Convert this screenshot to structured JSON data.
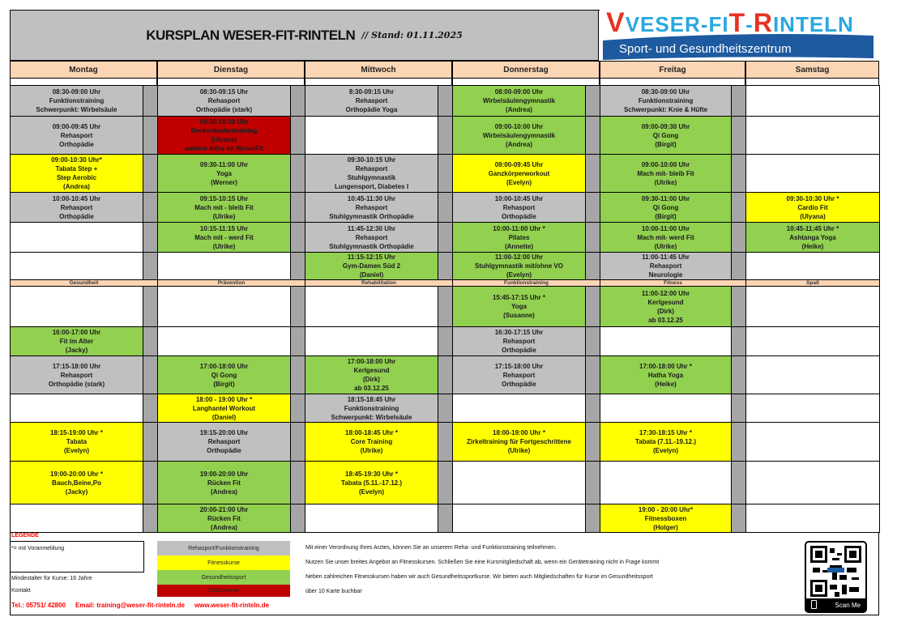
{
  "header": {
    "title": "KURSPLAN WESER-FIT-RINTELN",
    "stand": "// Stand: 01.11.2025",
    "logo_text": "WESER-FIT-RINTELN",
    "logo_subtitle": "Sport- und Gesundheitszentrum"
  },
  "colors": {
    "reha": "#c0c0c0",
    "fitness": "#ffff00",
    "gesund": "#92d050",
    "zusatz": "#c00000",
    "header_bg": "#fcd5b4",
    "contact_red": "#ff0000"
  },
  "days": [
    "Montag",
    "Dienstag",
    "Mittwoch",
    "Donnerstag",
    "Freitag",
    "Samstag"
  ],
  "categories": [
    "Gesundheit",
    "Prävention",
    "Rehabilitation",
    "Funktionstraining",
    "Fitness",
    "Spaß"
  ],
  "morning_rows": [
    [
      {
        "type": "reha",
        "lines": [
          "08:30-09:00 Uhr",
          "Funktionstraining",
          "Schwerpunkt: Wirbelsäule"
        ]
      },
      {
        "type": "reha",
        "lines": [
          "08:30-09:15 Uhr",
          "Rehasport",
          "Orthopädie (stark)"
        ]
      },
      {
        "type": "reha",
        "lines": [
          "8:30-09:15 Uhr",
          "Rehasport",
          "Orthopädie Yoga"
        ]
      },
      {
        "type": "gesund",
        "lines": [
          "08:00-09:00 Uhr",
          "Wirbelsäulengymnastik",
          "(Andrea)"
        ]
      },
      {
        "type": "reha",
        "lines": [
          "08:30-09:00 Uhr",
          "Funktionstraining",
          "Schwerpunkt: Knie & Hüfte"
        ]
      },
      null
    ],
    [
      {
        "type": "reha",
        "lines": [
          "09:00-09:45 Uhr",
          "Rehasport",
          "Orthopädie"
        ]
      },
      {
        "type": "zusatz",
        "lines": [
          "09:30-10:30 Uhr",
          "Beckenbodentraining",
          "(Ulyana)",
          "weitere Infos im WeserFit"
        ]
      },
      null,
      {
        "type": "gesund",
        "lines": [
          "09:00-10:00 Uhr",
          "Wirbelsäulengymnastik",
          "(Andrea)"
        ]
      },
      {
        "type": "gesund",
        "lines": [
          "09:00-09:30 Uhr",
          "Qi Gong",
          "(Birgit)"
        ]
      },
      null
    ],
    [
      {
        "type": "fitness",
        "lines": [
          "09:00-10:30 Uhr*",
          "Tabata Step +",
          "Step Aerobic",
          "(Andrea)"
        ]
      },
      {
        "type": "gesund",
        "lines": [
          "09:30-11:00 Uhr",
          "Yoga",
          "(Werner)"
        ]
      },
      {
        "type": "reha",
        "lines": [
          "09:30-10:15 Uhr",
          "Rehasport",
          "Stuhlgymnastik",
          "Lungensport, Diabetes I"
        ]
      },
      {
        "type": "fitness",
        "lines": [
          "09:00-09:45 Uhr",
          "Ganzkörperworkout",
          "(Evelyn)"
        ]
      },
      {
        "type": "gesund",
        "lines": [
          "09:00-10:00 Uhr",
          "Mach mit- bleib Fit",
          "(Ulrike)"
        ]
      },
      null
    ],
    [
      {
        "type": "reha",
        "lines": [
          "10:00-10:45 Uhr",
          "Rehasport",
          "Orthopädie"
        ]
      },
      {
        "type": "gesund",
        "lines": [
          "09:15-10:15 Uhr",
          "Mach mit - bleib Fit",
          "(Ulrike)"
        ]
      },
      {
        "type": "reha",
        "lines": [
          "10:45-11:30 Uhr",
          "Rehasport",
          "Stuhlgymnastik Orthopädie"
        ]
      },
      {
        "type": "reha",
        "lines": [
          "10:00-10:45 Uhr",
          "Rehasport",
          "Orthopädie"
        ]
      },
      {
        "type": "gesund",
        "lines": [
          "09:30-11:00 Uhr",
          "Qi Gong",
          "(Birgit)"
        ]
      },
      {
        "type": "fitness",
        "lines": [
          "09:30-10:30 Uhr *",
          "Cardio Fit",
          "(Ulyana)"
        ]
      }
    ],
    [
      null,
      {
        "type": "gesund",
        "lines": [
          "10:15-11:15 Uhr",
          "Mach mit - werd Fit",
          "(Ulrike)"
        ]
      },
      {
        "type": "reha",
        "lines": [
          "11:45-12:30 Uhr",
          "Rehasport",
          "Stuhlgymnastik Orthopädie"
        ]
      },
      {
        "type": "gesund",
        "lines": [
          "10:00-11:00 Uhr *",
          "Pilates",
          "(Annette)"
        ]
      },
      {
        "type": "gesund",
        "lines": [
          "10:00-11:00 Uhr",
          "Mach mit- werd Fit",
          "(Ulrike)"
        ]
      },
      {
        "type": "gesund",
        "lines": [
          "10:45-11:45 Uhr *",
          "Ashtanga Yoga",
          "(Heike)"
        ]
      }
    ],
    [
      null,
      null,
      {
        "type": "gesund",
        "lines": [
          "11:15-12:15 Uhr",
          "Gym-Damen Süd 2",
          "(Daniel)"
        ]
      },
      {
        "type": "gesund",
        "lines": [
          "11:00-12:00 Uhr",
          "Stuhlgymnastik mit/ohne VO",
          "(Evelyn)"
        ]
      },
      {
        "type": "reha",
        "lines": [
          "11:00-11:45 Uhr",
          "Rehasport",
          "Neurologie"
        ]
      },
      null
    ]
  ],
  "afternoon_rows": [
    [
      null,
      null,
      null,
      {
        "type": "gesund",
        "lines": [
          "15:45-17:15 Uhr *",
          "Yoga",
          "(Susanne)"
        ]
      },
      {
        "type": "gesund",
        "lines": [
          "11:00-12:00 Uhr",
          "Kerlgesund",
          "(Dirk)",
          "ab 03.12.25"
        ]
      },
      null
    ],
    [
      {
        "type": "gesund",
        "lines": [
          "16:00-17:00 Uhr",
          "Fit im Alter",
          "(Jacky)"
        ]
      },
      null,
      null,
      {
        "type": "reha",
        "lines": [
          "16:30-17:15 Uhr",
          "Rehasport",
          "Orthopädie"
        ]
      },
      null,
      null
    ],
    [
      {
        "type": "reha",
        "lines": [
          "17:15-18:00 Uhr",
          "Rehasport",
          "Orthopädie (stark)"
        ]
      },
      {
        "type": "gesund",
        "lines": [
          "17:00-18:00 Uhr",
          "Qi Gong",
          "(Birgit)"
        ]
      },
      {
        "type": "gesund",
        "lines": [
          "17:00-18:00 Uhr",
          "Kerlgesund",
          "(Dirk)",
          "ab 03.12.25"
        ]
      },
      {
        "type": "reha",
        "lines": [
          "17:15-18:00 Uhr",
          "Rehasport",
          "Orthopädie"
        ]
      },
      {
        "type": "gesund",
        "lines": [
          "17:00-18:00 Uhr *",
          "Hatha Yoga",
          "(Heike)"
        ]
      },
      null
    ],
    [
      null,
      {
        "type": "fitness",
        "lines": [
          "18:00 - 19:00 Uhr *",
          "Langhantel Workout",
          "(Daniel)"
        ]
      },
      {
        "type": "reha",
        "lines": [
          "18:15-18:45 Uhr",
          "Funktionstraining",
          "Schwerpunkt: Wirbelsäule"
        ]
      },
      null,
      null,
      null
    ],
    [
      {
        "type": "fitness",
        "lines": [
          "18:15-19:00 Uhr *",
          "Tabata",
          "(Evelyn)"
        ]
      },
      {
        "type": "reha",
        "lines": [
          "19:15-20:00 Uhr",
          "Rehasport",
          "Orthopädie"
        ]
      },
      {
        "type": "fitness",
        "lines": [
          "18:00-18:45 Uhr *",
          "Core Training",
          "(Ulrike)"
        ]
      },
      {
        "type": "fitness",
        "lines": [
          "18:00-19:00 Uhr *",
          "Zirkeltraining für Fortgeschrittene",
          "(Ulrike)"
        ]
      },
      {
        "type": "fitness",
        "lines": [
          "17:30-18:15 Uhr *",
          "Tabata  (7.11.-19.12.)",
          "(Evelyn)"
        ]
      },
      null
    ],
    [
      {
        "type": "fitness",
        "lines": [
          "19:00-20:00 Uhr *",
          "Bauch,Beine,Po",
          "(Jacky)"
        ]
      },
      {
        "type": "gesund",
        "lines": [
          "19:00-20:00 Uhr",
          "Rücken Fit",
          "(Andrea)"
        ]
      },
      {
        "type": "fitness",
        "lines": [
          "18:45-19:30 Uhr *",
          "Tabata  (5.11.-17.12.)",
          "(Evelyn)"
        ]
      },
      null,
      null,
      null
    ],
    [
      null,
      {
        "type": "gesund",
        "lines": [
          "20:00-21:00 Uhr",
          "Rücken Fit",
          "(Andrea)"
        ]
      },
      null,
      null,
      {
        "type": "fitness",
        "lines": [
          "19:00 - 20:00 Uhr*",
          "Fitnessboxen",
          "(Holger)"
        ]
      },
      null
    ]
  ],
  "legend": {
    "title": "LEGENDE",
    "note_registration": "*= mit Voranmeldung",
    "min_age": "Mindestalter für Kurse: 16 Jahre",
    "contact_label": "Kontakt",
    "items": [
      {
        "type": "reha",
        "label": "Rehasport/Funktionstraining",
        "description": "Mit einer Verordnung Ihres Arztes, können Sie an unserem Reha- und Funktionstraining teilnehmen."
      },
      {
        "type": "fitness",
        "label": "Fitnesskurse",
        "description": "Nutzen Sie unser breites Angebot an Fitnesskursen. Schließen Sie eine Kursmitgliedschaft ab, wenn ein Gerätetraining nicht in Frage kommt"
      },
      {
        "type": "gesund",
        "label": "Gesundheitssport",
        "description": "Neben zahlreichen Fitnesskursen haben wir auch Gesundheitssportkurse. Wir bieten auch Mitgliedschaften für Kurse im Gesundheitssport"
      },
      {
        "type": "zusatz",
        "label": "Zusatzkurse",
        "description": "über 10 Karte buchbar"
      }
    ],
    "phone": "Tel.: 05751/ 42800",
    "email": "Email: training@weser-fit-rinteln.de",
    "website": "www.weser-fit-rinteln.de"
  },
  "qr": {
    "label": "Scan Me"
  }
}
